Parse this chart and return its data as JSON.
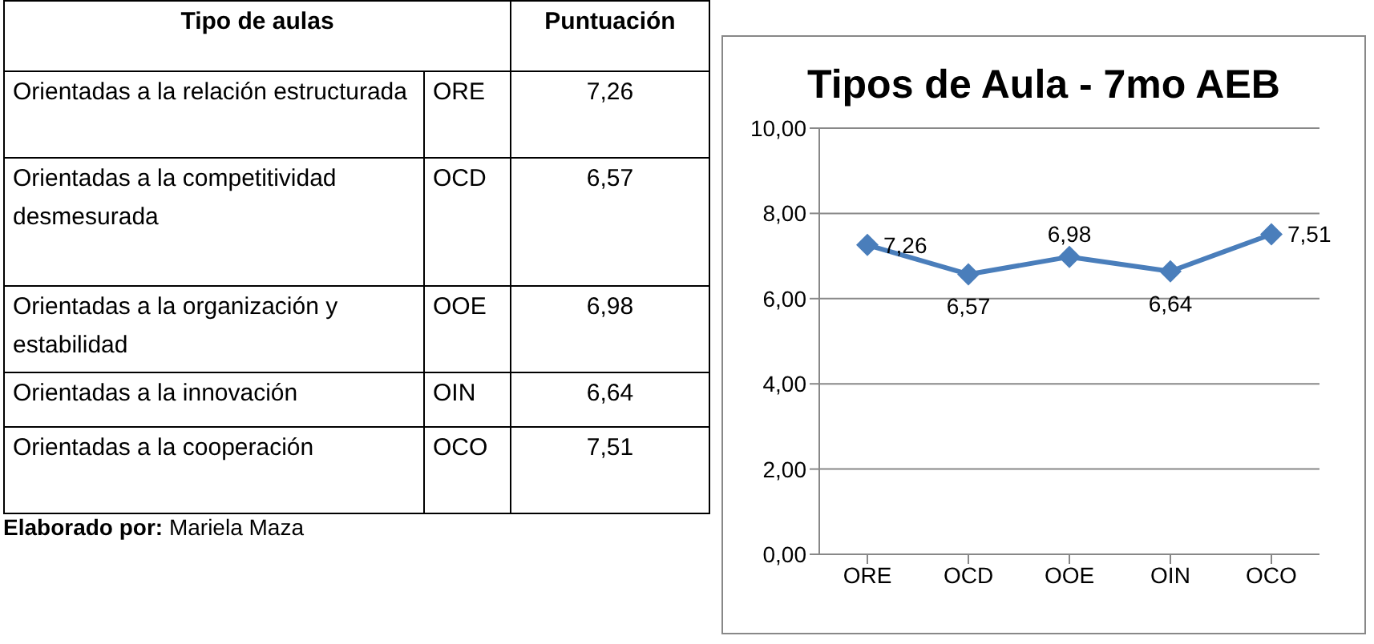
{
  "chart_data": [
    {
      "type": "other",
      "xlabel": "Tipo de aulas",
      "ylabel": "Puntuación",
      "categories": [
        "Orientadas a la relación estructurada",
        "Orientadas a la competitividad desmesurada",
        "Orientadas a la organización y estabilidad",
        "Orientadas a la innovación",
        "Orientadas a la cooperación"
      ],
      "y2_categories": [
        "ORE",
        "OCD",
        "OOE",
        "OIN",
        "OCO"
      ],
      "values": [
        7.26,
        6.57,
        6.98,
        6.64,
        7.51
      ],
      "value_labels": [
        "7,26",
        "6,57",
        "6,98",
        "6,64",
        "7,51"
      ],
      "annotations": [
        "Elaborado por: Mariela Maza"
      ]
    },
    {
      "type": "line",
      "title": "Tipos de Aula - 7mo AEB",
      "categories": [
        "ORE",
        "OCD",
        "OOE",
        "OIN",
        "OCO"
      ],
      "values": [
        7.26,
        6.57,
        6.98,
        6.64,
        7.51
      ],
      "color": "#4a7ebb",
      "ylim": [
        0,
        10
      ],
      "yticks": [
        {
          "value": 0,
          "label": "0,00"
        },
        {
          "value": 2,
          "label": "2,00"
        },
        {
          "value": 4,
          "label": "4,00"
        },
        {
          "value": 6,
          "label": "6,00"
        },
        {
          "value": 8,
          "label": "8,00"
        },
        {
          "value": 10,
          "label": "10,00"
        }
      ],
      "grid": "y",
      "marker": "diamond",
      "legend": false,
      "value_labels": [
        "7,26",
        "6,57",
        "6,98",
        "6,64",
        "7,51"
      ]
    }
  ]
}
